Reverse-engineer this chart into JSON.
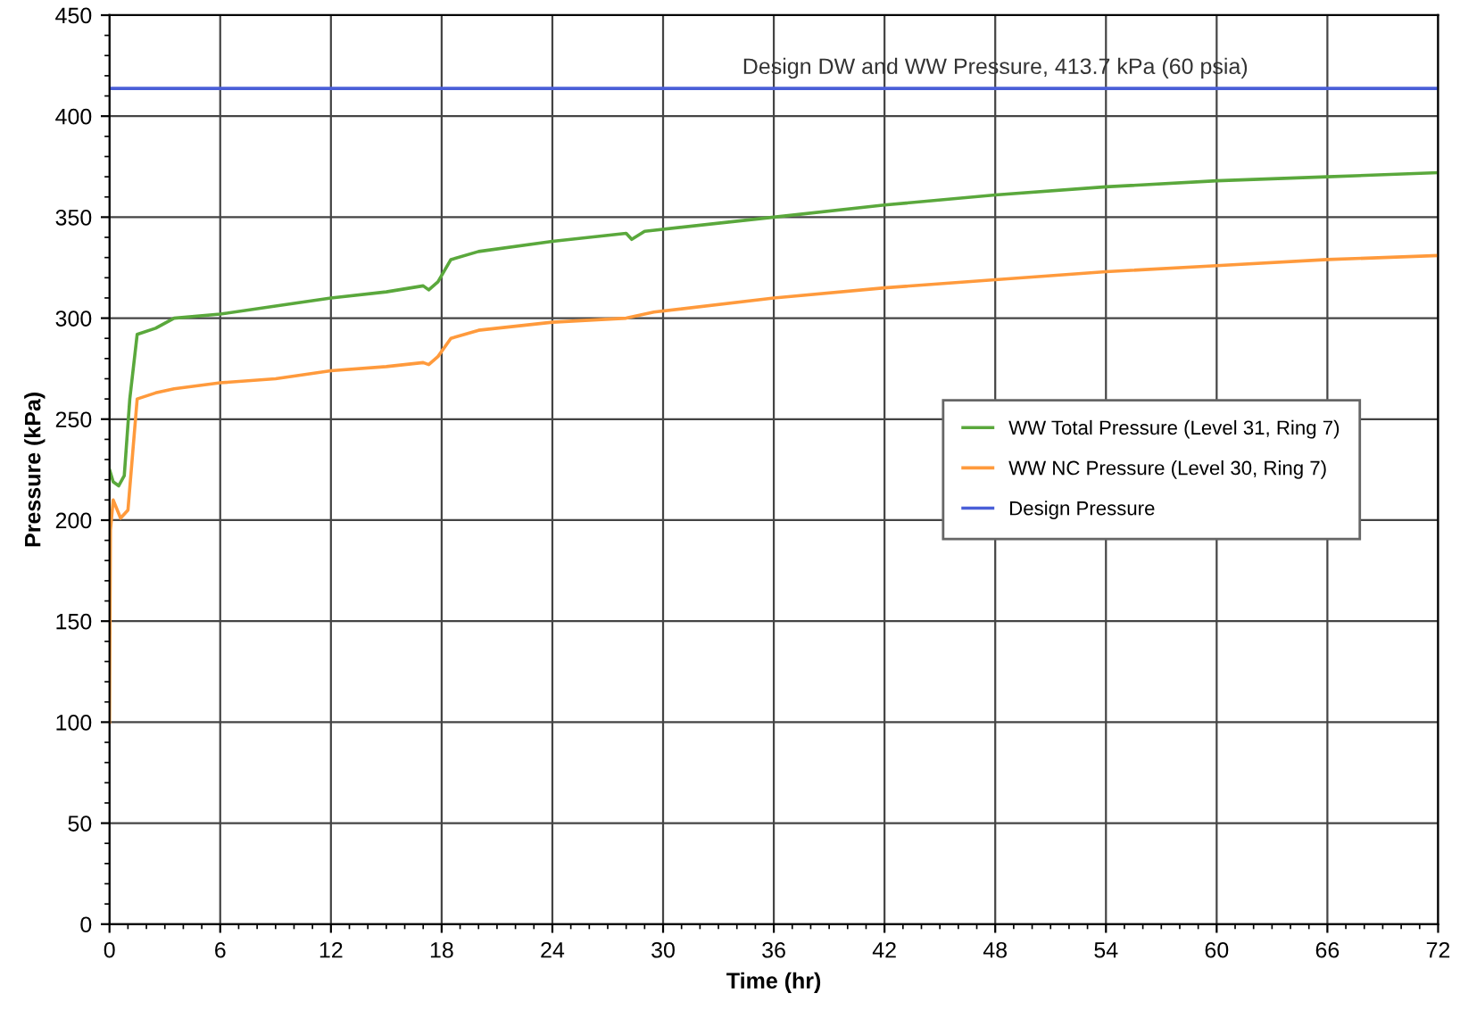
{
  "chart_data": {
    "type": "line",
    "xlabel": "Time (hr)",
    "ylabel": "Pressure (kPa)",
    "xlim": [
      0,
      72
    ],
    "xticks": [
      0,
      6,
      12,
      18,
      24,
      30,
      36,
      42,
      48,
      54,
      60,
      66,
      72
    ],
    "ylim": [
      0,
      450
    ],
    "yticks": [
      0,
      50,
      100,
      150,
      200,
      250,
      300,
      350,
      400,
      450
    ],
    "grid": true,
    "legend": "right",
    "marker": "none",
    "line_style": "solid",
    "series": [
      {
        "name": "WW Total Pressure (Level 31, Ring 7)",
        "color": "#5aa83c",
        "x": [
          0,
          0.2,
          0.5,
          0.8,
          1.1,
          1.5,
          2.5,
          3.5,
          6,
          9,
          12,
          15,
          17,
          17.3,
          17.8,
          18.5,
          20,
          24,
          28,
          28.3,
          29,
          36,
          42,
          48,
          54,
          60,
          66,
          72
        ],
        "values": [
          225,
          219,
          217,
          222,
          260,
          292,
          295,
          300,
          302,
          306,
          310,
          313,
          316,
          314,
          318,
          329,
          333,
          338,
          342,
          339,
          343,
          350,
          356,
          361,
          365,
          368,
          370,
          372
        ]
      },
      {
        "name": "WW NC Pressure (Level 30, Ring 7)",
        "color": "#ff9a3c",
        "x": [
          0,
          0.05,
          0.2,
          0.6,
          1.0,
          1.5,
          2.5,
          3.5,
          6,
          9,
          12,
          15,
          17,
          17.3,
          17.8,
          18.5,
          20,
          24,
          28,
          29.5,
          36,
          42,
          48,
          54,
          60,
          66,
          72
        ],
        "values": [
          100,
          195,
          210,
          201,
          205,
          260,
          263,
          265,
          268,
          270,
          274,
          276,
          278,
          277,
          281,
          290,
          294,
          298,
          300,
          303,
          310,
          315,
          319,
          323,
          326,
          329,
          331
        ]
      },
      {
        "name": "Design Pressure",
        "color": "#4a5fd8",
        "x": [
          0,
          72
        ],
        "values": [
          413.7,
          413.7
        ]
      }
    ],
    "annotations": [
      {
        "text": "Design DW and WW Pressure, 413.7 kPa (60 psia)",
        "x": 48,
        "y": 413.7
      }
    ]
  }
}
